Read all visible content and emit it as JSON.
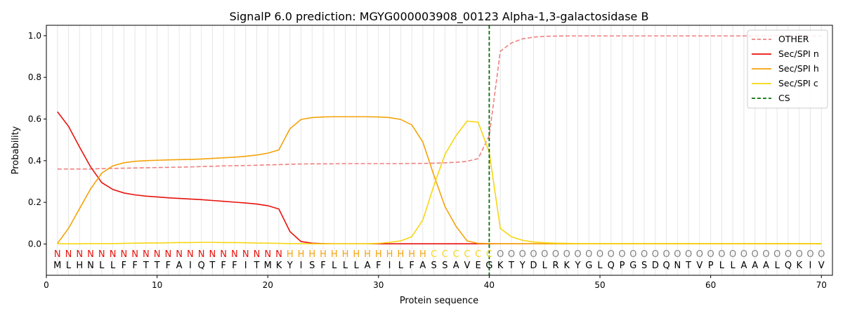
{
  "chart_data": {
    "type": "line",
    "title": "SignalP 6.0 prediction: MGYG000003908_00123 Alpha-1,3-galactosidase B",
    "xlabel": "Protein sequence",
    "ylabel": "Probability",
    "xlim": [
      0,
      71
    ],
    "ylim": [
      -0.15,
      1.05
    ],
    "x_ticks": [
      0,
      10,
      20,
      30,
      40,
      50,
      60,
      70
    ],
    "y_ticks": [
      0.0,
      0.2,
      0.4,
      0.6,
      0.8,
      1.0
    ],
    "x_tick_labels": [
      "0",
      "10",
      "20",
      "30",
      "40",
      "50",
      "60",
      "70"
    ],
    "y_tick_labels": [
      "0.0",
      "0.2",
      "0.4",
      "0.6",
      "0.8",
      "1.0"
    ],
    "legend_position": "top-right",
    "x": [
      1,
      2,
      3,
      4,
      5,
      6,
      7,
      8,
      9,
      10,
      11,
      12,
      13,
      14,
      15,
      16,
      17,
      18,
      19,
      20,
      21,
      22,
      23,
      24,
      25,
      26,
      27,
      28,
      29,
      30,
      31,
      32,
      33,
      34,
      35,
      36,
      37,
      38,
      39,
      40,
      41,
      42,
      43,
      44,
      45,
      46,
      47,
      48,
      49,
      50,
      51,
      52,
      53,
      54,
      55,
      56,
      57,
      58,
      59,
      60,
      61,
      62,
      63,
      64,
      65,
      66,
      67,
      68,
      69,
      70
    ],
    "series": [
      {
        "name": "OTHER",
        "color": "#f08080",
        "dashed": true,
        "values": [
          0.36,
          0.36,
          0.36,
          0.36,
          0.362,
          0.363,
          0.364,
          0.365,
          0.366,
          0.367,
          0.368,
          0.369,
          0.37,
          0.372,
          0.373,
          0.375,
          0.376,
          0.377,
          0.378,
          0.38,
          0.381,
          0.383,
          0.384,
          0.385,
          0.385,
          0.385,
          0.386,
          0.386,
          0.386,
          0.386,
          0.386,
          0.386,
          0.387,
          0.387,
          0.388,
          0.39,
          0.392,
          0.397,
          0.41,
          0.52,
          0.925,
          0.965,
          0.985,
          0.993,
          0.997,
          0.998,
          0.999,
          0.999,
          0.999,
          0.999,
          0.999,
          0.999,
          0.999,
          0.999,
          0.999,
          0.999,
          0.999,
          0.999,
          0.999,
          0.999,
          0.999,
          0.999,
          0.999,
          0.999,
          0.999,
          0.999,
          0.999,
          0.999,
          0.999,
          0.999
        ]
      },
      {
        "name": "Sec/SPI n",
        "color": "#e8120c",
        "dashed": false,
        "values": [
          0.635,
          0.565,
          0.465,
          0.37,
          0.295,
          0.262,
          0.245,
          0.236,
          0.23,
          0.226,
          0.222,
          0.219,
          0.216,
          0.213,
          0.209,
          0.205,
          0.201,
          0.197,
          0.192,
          0.184,
          0.168,
          0.06,
          0.012,
          0.004,
          0.002,
          0.001,
          0.001,
          0.001,
          0.001,
          0.001,
          0.001,
          0.001,
          0.001,
          0.001,
          0.001,
          0.001,
          0.001,
          0.001,
          0.001,
          0.001,
          0.001,
          0.001,
          0.001,
          0.001,
          0.001,
          0.001,
          0.001,
          0.001,
          0.001,
          0.001,
          0.001,
          0.001,
          0.001,
          0.001,
          0.001,
          0.001,
          0.001,
          0.001,
          0.001,
          0.001,
          0.001,
          0.001,
          0.001,
          0.001,
          0.001,
          0.001,
          0.001,
          0.001,
          0.001,
          0.001
        ]
      },
      {
        "name": "Sec/SPI h",
        "color": "#f4a30c",
        "dashed": false,
        "values": [
          0.003,
          0.075,
          0.17,
          0.265,
          0.34,
          0.375,
          0.39,
          0.397,
          0.4,
          0.402,
          0.404,
          0.405,
          0.406,
          0.408,
          0.411,
          0.414,
          0.417,
          0.421,
          0.427,
          0.436,
          0.452,
          0.553,
          0.598,
          0.607,
          0.61,
          0.611,
          0.611,
          0.611,
          0.611,
          0.61,
          0.607,
          0.598,
          0.572,
          0.49,
          0.33,
          0.18,
          0.085,
          0.015,
          0.003,
          0.002,
          0.001,
          0.001,
          0.001,
          0.001,
          0.001,
          0.001,
          0.001,
          0.001,
          0.001,
          0.001,
          0.001,
          0.001,
          0.001,
          0.001,
          0.001,
          0.001,
          0.001,
          0.001,
          0.001,
          0.001,
          0.001,
          0.001,
          0.001,
          0.001,
          0.001,
          0.001,
          0.001,
          0.001,
          0.001,
          0.001
        ]
      },
      {
        "name": "Sec/SPI c",
        "color": "#f6d713",
        "dashed": false,
        "values": [
          0.001,
          0.001,
          0.001,
          0.002,
          0.002,
          0.002,
          0.003,
          0.004,
          0.005,
          0.005,
          0.006,
          0.007,
          0.007,
          0.008,
          0.008,
          0.007,
          0.007,
          0.006,
          0.005,
          0.004,
          0.003,
          0.002,
          0.002,
          0.001,
          0.001,
          0.001,
          0.001,
          0.001,
          0.001,
          0.003,
          0.008,
          0.015,
          0.035,
          0.115,
          0.28,
          0.43,
          0.52,
          0.59,
          0.585,
          0.44,
          0.075,
          0.035,
          0.018,
          0.01,
          0.006,
          0.004,
          0.003,
          0.002,
          0.002,
          0.002,
          0.002,
          0.002,
          0.002,
          0.002,
          0.002,
          0.002,
          0.002,
          0.002,
          0.002,
          0.002,
          0.002,
          0.002,
          0.002,
          0.002,
          0.002,
          0.002,
          0.002,
          0.002,
          0.002,
          0.002
        ]
      }
    ],
    "cs": {
      "name": "CS",
      "x": 40,
      "color": "#0a6e0a"
    },
    "sequence": [
      "M",
      "L",
      "H",
      "N",
      "L",
      "L",
      "F",
      "F",
      "T",
      "T",
      "F",
      "A",
      "I",
      "Q",
      "T",
      "F",
      "F",
      "I",
      "T",
      "M",
      "K",
      "Y",
      "I",
      "S",
      "F",
      "L",
      "L",
      "L",
      "A",
      "F",
      "I",
      "L",
      "F",
      "A",
      "S",
      "S",
      "A",
      "V",
      "E",
      "G",
      "K",
      "T",
      "Y",
      "D",
      "L",
      "R",
      "K",
      "Y",
      "G",
      "L",
      "Q",
      "P",
      "G",
      "S",
      "D",
      "Q",
      "N",
      "T",
      "V",
      "P",
      "L",
      "L",
      "A",
      "A",
      "A",
      "L",
      "Q",
      "K",
      "I",
      "V"
    ],
    "region_labels": [
      "N",
      "N",
      "N",
      "N",
      "N",
      "N",
      "N",
      "N",
      "N",
      "N",
      "N",
      "N",
      "N",
      "N",
      "N",
      "N",
      "N",
      "N",
      "N",
      "N",
      "N",
      "H",
      "H",
      "H",
      "H",
      "H",
      "H",
      "H",
      "H",
      "H",
      "H",
      "H",
      "H",
      "H",
      "C",
      "C",
      "C",
      "C",
      "C",
      "C",
      "O",
      "O",
      "O",
      "O",
      "O",
      "O",
      "O",
      "O",
      "O",
      "O",
      "O",
      "O",
      "O",
      "O",
      "O",
      "O",
      "O",
      "O",
      "O",
      "O",
      "O",
      "O",
      "O",
      "O",
      "O",
      "O",
      "O",
      "O",
      "O",
      "O"
    ],
    "region_colors": {
      "N": "#e8120c",
      "H": "#f4a30c",
      "C": "#f6d713",
      "O": "#808080"
    }
  }
}
